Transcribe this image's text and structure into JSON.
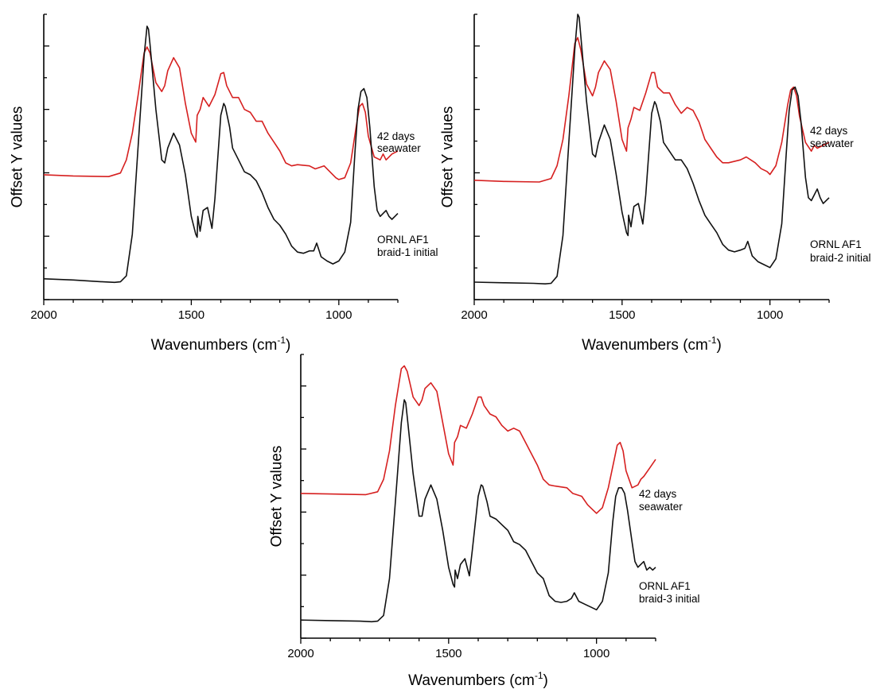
{
  "chart_data": [
    {
      "type": "line",
      "xlabel": "Wavenumbers",
      "xlabel_unit": "(cm",
      "xlabel_unit_sup": "-1",
      "xlabel_unit_close": ")",
      "ylabel": "Offset Y values",
      "xlim": [
        2000,
        800
      ],
      "x_reversed": true,
      "x_ticks": [
        2000,
        1500,
        1000
      ],
      "x_tick_labels": [
        "2000",
        "1500",
        "1000"
      ],
      "y_tick_labels_shown": false,
      "grid": false,
      "series": [
        {
          "color": "#d62020",
          "annotation": [
            "42 days",
            "seawater"
          ],
          "x": [
            2000,
            1900,
            1780,
            1740,
            1720,
            1700,
            1680,
            1660,
            1650,
            1640,
            1620,
            1600,
            1590,
            1580,
            1560,
            1540,
            1520,
            1500,
            1485,
            1480,
            1470,
            1460,
            1440,
            1420,
            1400,
            1390,
            1380,
            1360,
            1340,
            1320,
            1300,
            1280,
            1260,
            1240,
            1220,
            1200,
            1180,
            1160,
            1140,
            1100,
            1080,
            1050,
            1030,
            1010,
            1000,
            980,
            960,
            940,
            930,
            920,
            910,
            900,
            880,
            860,
            850,
            840,
            820,
            800
          ],
          "y": [
            1.9,
            1.88,
            1.87,
            1.93,
            2.15,
            2.6,
            3.25,
            3.95,
            4.05,
            3.95,
            3.45,
            3.3,
            3.4,
            3.65,
            3.87,
            3.7,
            3.1,
            2.6,
            2.45,
            2.9,
            3.0,
            3.2,
            3.05,
            3.25,
            3.6,
            3.62,
            3.4,
            3.2,
            3.2,
            3.0,
            2.95,
            2.8,
            2.8,
            2.6,
            2.45,
            2.3,
            2.1,
            2.05,
            2.07,
            2.05,
            2.0,
            2.05,
            1.95,
            1.85,
            1.82,
            1.85,
            2.1,
            2.75,
            3.05,
            3.1,
            2.95,
            2.55,
            2.2,
            2.15,
            2.25,
            2.15,
            2.25,
            2.3
          ]
        },
        {
          "color": "#111111",
          "annotation": [
            "ORNL AF1",
            "braid-1 initial"
          ],
          "x": [
            2000,
            1900,
            1800,
            1760,
            1740,
            1720,
            1700,
            1680,
            1660,
            1650,
            1645,
            1640,
            1620,
            1600,
            1590,
            1580,
            1560,
            1540,
            1520,
            1500,
            1485,
            1480,
            1478,
            1470,
            1460,
            1445,
            1430,
            1420,
            1400,
            1390,
            1385,
            1370,
            1360,
            1340,
            1320,
            1300,
            1280,
            1260,
            1240,
            1220,
            1200,
            1180,
            1160,
            1140,
            1120,
            1100,
            1085,
            1075,
            1060,
            1040,
            1020,
            1000,
            980,
            960,
            945,
            935,
            925,
            915,
            905,
            895,
            880,
            870,
            860,
            850,
            840,
            830,
            820,
            810,
            800
          ],
          "y": [
            0.15,
            0.13,
            0.1,
            0.09,
            0.1,
            0.2,
            0.9,
            2.4,
            3.9,
            4.4,
            4.35,
            4.1,
            3.0,
            2.15,
            2.1,
            2.35,
            2.6,
            2.4,
            1.9,
            1.2,
            0.9,
            0.85,
            1.2,
            0.95,
            1.3,
            1.35,
            1.0,
            1.5,
            2.9,
            3.1,
            3.05,
            2.7,
            2.35,
            2.15,
            1.95,
            1.9,
            1.8,
            1.6,
            1.35,
            1.15,
            1.05,
            0.9,
            0.7,
            0.6,
            0.58,
            0.62,
            0.62,
            0.75,
            0.52,
            0.45,
            0.4,
            0.45,
            0.6,
            1.1,
            2.3,
            3.0,
            3.3,
            3.35,
            3.2,
            2.7,
            1.7,
            1.3,
            1.2,
            1.25,
            1.3,
            1.2,
            1.15,
            1.2,
            1.25
          ]
        }
      ]
    },
    {
      "type": "line",
      "xlabel": "Wavenumbers",
      "xlabel_unit": "(cm",
      "xlabel_unit_sup": "-1",
      "xlabel_unit_close": ")",
      "ylabel": "Offset Y values",
      "xlim": [
        2000,
        800
      ],
      "x_reversed": true,
      "x_ticks": [
        2000,
        1500,
        1000
      ],
      "x_tick_labels": [
        "2000",
        "1500",
        "1000"
      ],
      "y_tick_labels_shown": false,
      "grid": false,
      "series": [
        {
          "color": "#d62020",
          "annotation": [
            "42 days",
            "seawater"
          ],
          "x": [
            2000,
            1900,
            1780,
            1740,
            1720,
            1700,
            1680,
            1660,
            1650,
            1640,
            1620,
            1600,
            1590,
            1580,
            1560,
            1540,
            1520,
            1500,
            1485,
            1480,
            1470,
            1460,
            1440,
            1420,
            1400,
            1390,
            1380,
            1360,
            1340,
            1320,
            1300,
            1280,
            1260,
            1240,
            1220,
            1200,
            1180,
            1160,
            1140,
            1100,
            1080,
            1050,
            1030,
            1010,
            1000,
            980,
            960,
            940,
            930,
            920,
            910,
            900,
            880,
            860,
            850,
            840,
            820,
            800
          ],
          "y": [
            1.85,
            1.83,
            1.82,
            1.88,
            2.1,
            2.55,
            3.3,
            4.2,
            4.3,
            4.1,
            3.5,
            3.3,
            3.45,
            3.7,
            3.9,
            3.75,
            3.2,
            2.55,
            2.35,
            2.75,
            2.9,
            3.1,
            3.05,
            3.35,
            3.7,
            3.7,
            3.45,
            3.35,
            3.35,
            3.15,
            3.0,
            3.1,
            3.05,
            2.85,
            2.55,
            2.4,
            2.25,
            2.15,
            2.15,
            2.2,
            2.25,
            2.15,
            2.05,
            2.0,
            1.95,
            2.1,
            2.5,
            3.15,
            3.4,
            3.45,
            3.3,
            2.95,
            2.5,
            2.35,
            2.45,
            2.4,
            2.45,
            2.5
          ]
        },
        {
          "color": "#111111",
          "annotation": [
            "ORNL AF1",
            "braid-2 initial"
          ],
          "x": [
            2000,
            1900,
            1800,
            1760,
            1740,
            1720,
            1700,
            1680,
            1660,
            1650,
            1645,
            1640,
            1620,
            1600,
            1590,
            1580,
            1560,
            1540,
            1520,
            1500,
            1485,
            1480,
            1478,
            1470,
            1460,
            1445,
            1430,
            1420,
            1400,
            1390,
            1385,
            1370,
            1360,
            1340,
            1320,
            1300,
            1280,
            1260,
            1240,
            1220,
            1200,
            1180,
            1160,
            1140,
            1120,
            1100,
            1085,
            1075,
            1060,
            1040,
            1020,
            1000,
            980,
            960,
            945,
            935,
            925,
            915,
            905,
            895,
            880,
            870,
            860,
            850,
            840,
            830,
            820,
            810,
            800
          ],
          "y": [
            0.1,
            0.09,
            0.08,
            0.07,
            0.08,
            0.2,
            0.9,
            2.5,
            4.1,
            4.7,
            4.65,
            4.35,
            3.2,
            2.3,
            2.25,
            2.5,
            2.8,
            2.55,
            1.95,
            1.3,
            0.95,
            0.9,
            1.25,
            1.05,
            1.4,
            1.45,
            1.1,
            1.6,
            3.0,
            3.2,
            3.15,
            2.85,
            2.5,
            2.35,
            2.2,
            2.2,
            2.05,
            1.8,
            1.5,
            1.25,
            1.1,
            0.95,
            0.75,
            0.65,
            0.62,
            0.65,
            0.68,
            0.8,
            0.55,
            0.45,
            0.4,
            0.35,
            0.5,
            1.1,
            2.3,
            3.05,
            3.4,
            3.45,
            3.3,
            2.85,
            1.9,
            1.55,
            1.5,
            1.6,
            1.7,
            1.55,
            1.45,
            1.5,
            1.55
          ]
        }
      ]
    },
    {
      "type": "line",
      "xlabel": "Wavenumbers",
      "xlabel_unit": "(cm",
      "xlabel_unit_sup": "-1",
      "xlabel_unit_close": ")",
      "ylabel": "Offset Y values",
      "xlim": [
        2000,
        800
      ],
      "x_reversed": true,
      "x_ticks": [
        2000,
        1500,
        1000
      ],
      "x_tick_labels": [
        "2000",
        "1500",
        "1000"
      ],
      "y_tick_labels_shown": false,
      "grid": false,
      "series": [
        {
          "color": "#d62020",
          "annotation": [
            "42 days",
            "seawater"
          ],
          "x": [
            2000,
            1900,
            1780,
            1740,
            1720,
            1700,
            1680,
            1660,
            1650,
            1640,
            1620,
            1600,
            1590,
            1580,
            1560,
            1540,
            1520,
            1500,
            1485,
            1480,
            1470,
            1460,
            1440,
            1420,
            1400,
            1390,
            1380,
            1360,
            1340,
            1320,
            1300,
            1280,
            1260,
            1240,
            1220,
            1200,
            1180,
            1160,
            1140,
            1100,
            1080,
            1050,
            1030,
            1010,
            1000,
            980,
            960,
            940,
            930,
            920,
            910,
            900,
            880,
            860,
            850,
            840,
            820,
            800
          ],
          "y": [
            2.35,
            2.34,
            2.33,
            2.38,
            2.6,
            3.1,
            3.9,
            4.55,
            4.6,
            4.5,
            4.05,
            3.9,
            4.0,
            4.2,
            4.3,
            4.15,
            3.6,
            3.05,
            2.85,
            3.25,
            3.35,
            3.55,
            3.5,
            3.75,
            4.05,
            4.05,
            3.9,
            3.75,
            3.7,
            3.55,
            3.45,
            3.5,
            3.45,
            3.25,
            3.05,
            2.85,
            2.6,
            2.5,
            2.48,
            2.45,
            2.35,
            2.3,
            2.15,
            2.05,
            2.0,
            2.1,
            2.45,
            2.95,
            3.2,
            3.25,
            3.1,
            2.75,
            2.45,
            2.5,
            2.6,
            2.65,
            2.8,
            2.95
          ]
        },
        {
          "color": "#111111",
          "annotation": [
            "ORNL AF1",
            "braid-3 initial"
          ],
          "x": [
            2000,
            1900,
            1800,
            1760,
            1740,
            1720,
            1700,
            1680,
            1660,
            1650,
            1645,
            1640,
            1620,
            1600,
            1590,
            1580,
            1560,
            1540,
            1520,
            1500,
            1485,
            1480,
            1478,
            1470,
            1460,
            1445,
            1430,
            1420,
            1400,
            1390,
            1385,
            1370,
            1360,
            1340,
            1320,
            1300,
            1280,
            1260,
            1240,
            1220,
            1200,
            1180,
            1160,
            1140,
            1120,
            1100,
            1085,
            1075,
            1060,
            1040,
            1020,
            1000,
            980,
            960,
            945,
            935,
            925,
            915,
            905,
            895,
            880,
            870,
            860,
            850,
            840,
            830,
            820,
            810,
            800
          ],
          "y": [
            0.12,
            0.11,
            0.1,
            0.09,
            0.1,
            0.2,
            0.85,
            2.2,
            3.6,
            4.0,
            3.95,
            3.7,
            2.7,
            1.95,
            1.95,
            2.25,
            2.5,
            2.25,
            1.7,
            1.05,
            0.75,
            0.7,
            1.0,
            0.85,
            1.1,
            1.2,
            0.9,
            1.35,
            2.3,
            2.5,
            2.48,
            2.2,
            1.95,
            1.9,
            1.8,
            1.7,
            1.5,
            1.45,
            1.35,
            1.15,
            0.95,
            0.85,
            0.55,
            0.45,
            0.43,
            0.45,
            0.5,
            0.6,
            0.45,
            0.4,
            0.35,
            0.3,
            0.45,
            0.95,
            1.85,
            2.3,
            2.45,
            2.45,
            2.35,
            2.05,
            1.5,
            1.15,
            1.05,
            1.1,
            1.15,
            1.0,
            1.05,
            1.0,
            1.05
          ]
        }
      ]
    }
  ]
}
